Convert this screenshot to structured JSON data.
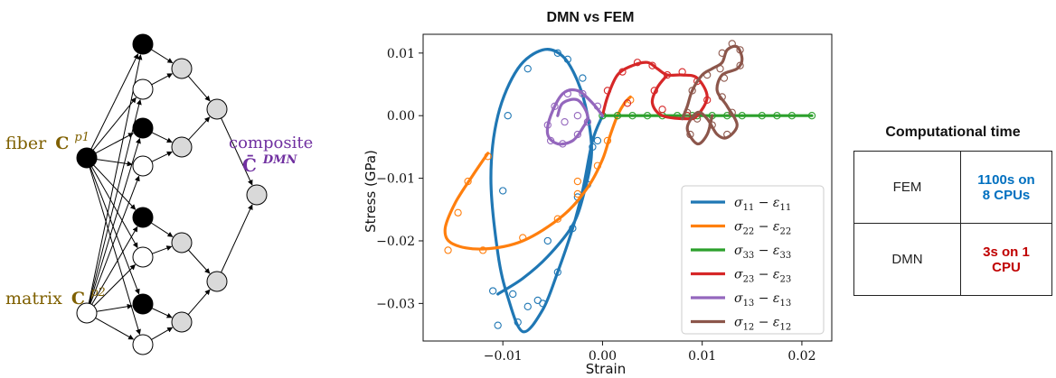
{
  "diagram": {
    "fiber_label": "fiber",
    "fiber_sym": "C",
    "fiber_sup": "p1",
    "matrix_label": "matrix",
    "matrix_sym": "C",
    "matrix_sup": "p2",
    "composite_label": "composite",
    "composite_sym": "C̄",
    "composite_sup": "DMN",
    "colors": {
      "label": "#7f6000",
      "composite": "#7030a0",
      "black_node": "#000000",
      "gray_node": "#d9d9d9",
      "white_node": "#ffffff"
    }
  },
  "chart_data": {
    "type": "line",
    "title": "DMN vs FEM",
    "xlabel": "Strain",
    "ylabel": "Stress (GPa)",
    "xlim": [
      -0.018,
      0.023
    ],
    "ylim": [
      -0.036,
      0.013
    ],
    "xticks": [
      -0.01,
      0.0,
      0.01,
      0.02
    ],
    "xtick_labels": [
      "−0.01",
      "0.00",
      "0.01",
      "0.02"
    ],
    "yticks": [
      0.01,
      0.0,
      -0.01,
      -0.02,
      -0.03
    ],
    "ytick_labels": [
      "0.01",
      "0.00",
      "−0.01",
      "−0.02",
      "−0.03"
    ],
    "grid": false,
    "legend_position": "lower-right",
    "series": [
      {
        "name": "σ11 − ε11",
        "legend_main": "σ",
        "legend_sub1": "11",
        "legend_mid": " − ε",
        "legend_sub2": "11",
        "color": "#1f77b4",
        "line": [
          [
            0.0,
            0.0
          ],
          [
            -0.001,
            -0.004
          ],
          [
            -0.002,
            -0.012
          ],
          [
            -0.003,
            -0.018
          ],
          [
            -0.0045,
            -0.025
          ],
          [
            -0.006,
            -0.031
          ],
          [
            -0.008,
            -0.0345
          ],
          [
            -0.0095,
            -0.029
          ],
          [
            -0.0105,
            -0.022
          ],
          [
            -0.0112,
            -0.01
          ],
          [
            -0.0105,
            0.0
          ],
          [
            -0.0085,
            0.0075
          ],
          [
            -0.006,
            0.0105
          ],
          [
            -0.004,
            0.0095
          ],
          [
            -0.0025,
            0.0055
          ],
          [
            -0.0015,
            0.0
          ],
          [
            -0.0011,
            -0.006
          ],
          [
            -0.0018,
            -0.012
          ],
          [
            -0.003,
            -0.0175
          ],
          [
            -0.0055,
            -0.0225
          ],
          [
            -0.008,
            -0.026
          ],
          [
            -0.0105,
            -0.0285
          ]
        ],
        "markers": [
          [
            0.0,
            0.0
          ],
          [
            -0.0005,
            -0.004
          ],
          [
            -0.0015,
            -0.011
          ],
          [
            -0.003,
            -0.018
          ],
          [
            -0.0045,
            -0.025
          ],
          [
            -0.006,
            -0.03
          ],
          [
            -0.0085,
            -0.033
          ],
          [
            -0.0105,
            -0.0335
          ],
          [
            -0.011,
            -0.028
          ],
          [
            -0.01,
            -0.012
          ],
          [
            -0.0095,
            0.0
          ],
          [
            -0.0075,
            0.0075
          ],
          [
            -0.0045,
            0.01
          ],
          [
            -0.0035,
            0.009
          ],
          [
            -0.002,
            0.006
          ],
          [
            -0.001,
            -0.005
          ],
          [
            -0.0025,
            -0.013
          ],
          [
            -0.0055,
            -0.02
          ],
          [
            -0.009,
            -0.0285
          ],
          [
            -0.0075,
            -0.0305
          ],
          [
            -0.0065,
            -0.0295
          ]
        ]
      },
      {
        "name": "σ22 − ε22",
        "legend_main": "σ",
        "legend_sub1": "22",
        "legend_mid": " − ε",
        "legend_sub2": "22",
        "color": "#ff7f0e",
        "line": [
          [
            -0.0115,
            -0.006
          ],
          [
            -0.013,
            -0.0095
          ],
          [
            -0.0148,
            -0.014
          ],
          [
            -0.0158,
            -0.0182
          ],
          [
            -0.015,
            -0.0205
          ],
          [
            -0.012,
            -0.0213
          ],
          [
            -0.008,
            -0.02
          ],
          [
            -0.004,
            -0.016
          ],
          [
            -0.0015,
            -0.0115
          ],
          [
            0.0,
            -0.007
          ],
          [
            0.0008,
            -0.003
          ],
          [
            0.0015,
            0.0
          ],
          [
            0.0022,
            0.002
          ],
          [
            0.0028,
            0.003
          ]
        ],
        "markers": [
          [
            -0.0115,
            -0.0065
          ],
          [
            -0.0135,
            -0.0105
          ],
          [
            -0.0145,
            -0.0155
          ],
          [
            -0.0155,
            -0.0215
          ],
          [
            -0.012,
            -0.0215
          ],
          [
            -0.008,
            -0.0195
          ],
          [
            -0.0045,
            -0.0165
          ],
          [
            -0.0025,
            -0.0125
          ],
          [
            -0.0005,
            -0.008
          ],
          [
            0.0005,
            -0.004
          ],
          [
            0.0015,
            0.0
          ],
          [
            0.0028,
            0.0025
          ],
          [
            -0.0025,
            -0.0105
          ]
        ]
      },
      {
        "name": "σ33 − ε33",
        "legend_main": "σ",
        "legend_sub1": "33",
        "legend_mid": " − ε",
        "legend_sub2": "33",
        "color": "#2ca02c",
        "line": [
          [
            0.0,
            0.0
          ],
          [
            0.005,
            0.0
          ],
          [
            0.01,
            0.0
          ],
          [
            0.015,
            0.0
          ],
          [
            0.021,
            0.0
          ]
        ],
        "markers": [
          [
            0.0,
            0.0
          ],
          [
            0.0015,
            0.0
          ],
          [
            0.003,
            0.0
          ],
          [
            0.0045,
            0.0
          ],
          [
            0.006,
            0.0
          ],
          [
            0.0075,
            0.0
          ],
          [
            0.0085,
            0.0
          ],
          [
            0.009,
            0.0
          ],
          [
            0.0095,
            0.0
          ],
          [
            0.011,
            0.0
          ],
          [
            0.0125,
            0.0
          ],
          [
            0.014,
            0.0
          ],
          [
            0.016,
            0.0
          ],
          [
            0.0175,
            0.0
          ],
          [
            0.019,
            0.0
          ],
          [
            0.021,
            0.0
          ]
        ]
      },
      {
        "name": "σ23 − ε23",
        "legend_main": "σ",
        "legend_sub1": "23",
        "legend_mid": " − ε",
        "legend_sub2": "23",
        "color": "#d62728",
        "line": [
          [
            0.0,
            0.0
          ],
          [
            0.0005,
            0.003
          ],
          [
            0.0015,
            0.0065
          ],
          [
            0.003,
            0.008
          ],
          [
            0.0045,
            0.0085
          ],
          [
            0.0055,
            0.0075
          ],
          [
            0.0065,
            0.0065
          ],
          [
            0.008,
            0.0065
          ],
          [
            0.0095,
            0.006
          ],
          [
            0.0105,
            0.003
          ],
          [
            0.0095,
            0.0
          ],
          [
            0.0085,
            -0.0005
          ],
          [
            0.006,
            0.0
          ],
          [
            0.005,
            0.002
          ],
          [
            0.0055,
            0.0045
          ],
          [
            0.0065,
            0.0065
          ]
        ],
        "markers": [
          [
            0.0005,
            0.004
          ],
          [
            0.002,
            0.007
          ],
          [
            0.0035,
            0.0085
          ],
          [
            0.005,
            0.008
          ],
          [
            0.0065,
            0.0065
          ],
          [
            0.008,
            0.007
          ],
          [
            0.0095,
            0.0055
          ],
          [
            0.0105,
            0.0025
          ],
          [
            0.0085,
            0.0
          ],
          [
            0.006,
            0.001
          ],
          [
            0.0052,
            0.004
          ],
          [
            0.0025,
            0.002
          ]
        ]
      },
      {
        "name": "σ13 − ε13",
        "legend_main": "σ",
        "legend_sub1": "13",
        "legend_mid": " − ε",
        "legend_sub2": "13",
        "color": "#9467bd",
        "line": [
          [
            0.0,
            0.0
          ],
          [
            -0.001,
            0.002
          ],
          [
            -0.0025,
            0.004
          ],
          [
            -0.004,
            0.0035
          ],
          [
            -0.0052,
            0.0
          ],
          [
            -0.0055,
            -0.003
          ],
          [
            -0.0045,
            -0.0045
          ],
          [
            -0.003,
            -0.004
          ],
          [
            -0.002,
            -0.002
          ],
          [
            -0.0015,
            0.0
          ],
          [
            -0.0025,
            0.0025
          ],
          [
            -0.004,
            0.002
          ],
          [
            -0.0045,
            0.0
          ]
        ],
        "markers": [
          [
            -0.0005,
            0.0015
          ],
          [
            -0.002,
            0.0035
          ],
          [
            -0.0035,
            0.0035
          ],
          [
            -0.0048,
            0.0015
          ],
          [
            -0.0055,
            -0.0015
          ],
          [
            -0.0052,
            -0.004
          ],
          [
            -0.004,
            -0.0045
          ],
          [
            -0.0025,
            -0.003
          ],
          [
            -0.0015,
            -0.001
          ],
          [
            -0.0025,
            0.0
          ],
          [
            -0.0038,
            -0.001
          ]
        ]
      },
      {
        "name": "σ12 − ε12",
        "legend_main": "σ",
        "legend_sub1": "12",
        "legend_mid": " − ε",
        "legend_sub2": "12",
        "color": "#8c564b",
        "line": [
          [
            0.008,
            -0.0005
          ],
          [
            0.0085,
            0.0015
          ],
          [
            0.009,
            0.004
          ],
          [
            0.01,
            0.0065
          ],
          [
            0.011,
            0.0075
          ],
          [
            0.012,
            0.0085
          ],
          [
            0.0125,
            0.0105
          ],
          [
            0.0135,
            0.011
          ],
          [
            0.014,
            0.009
          ],
          [
            0.0135,
            0.0075
          ],
          [
            0.012,
            0.0065
          ],
          [
            0.0115,
            0.004
          ],
          [
            0.0125,
            0.0015
          ],
          [
            0.0135,
            -0.0015
          ],
          [
            0.0125,
            -0.0035
          ],
          [
            0.0115,
            -0.003
          ],
          [
            0.0105,
            -0.0005
          ],
          [
            0.0095,
            0.0005
          ],
          [
            0.0085,
            -0.002
          ],
          [
            0.0095,
            -0.0045
          ],
          [
            0.0105,
            -0.003
          ],
          [
            0.011,
            0.0
          ]
        ],
        "markers": [
          [
            0.0085,
            0.0005
          ],
          [
            0.009,
            0.004
          ],
          [
            0.0105,
            0.0065
          ],
          [
            0.0118,
            0.0075
          ],
          [
            0.012,
            0.01
          ],
          [
            0.013,
            0.0115
          ],
          [
            0.0138,
            0.0105
          ],
          [
            0.0138,
            0.008
          ],
          [
            0.0122,
            0.006
          ],
          [
            0.012,
            0.003
          ],
          [
            0.013,
            0.0005
          ],
          [
            0.0125,
            -0.003
          ],
          [
            0.011,
            -0.0015
          ],
          [
            0.0095,
            -0.0005
          ],
          [
            0.0088,
            -0.003
          ]
        ]
      }
    ]
  },
  "table": {
    "title": "Computational time",
    "rows": [
      {
        "label": "FEM",
        "value_line1": "1100s on",
        "value_line2": "8 CPUs",
        "color": "#0070c0"
      },
      {
        "label": "DMN",
        "value_line1": "3s on 1",
        "value_line2": "CPU",
        "color": "#c00000"
      }
    ]
  }
}
